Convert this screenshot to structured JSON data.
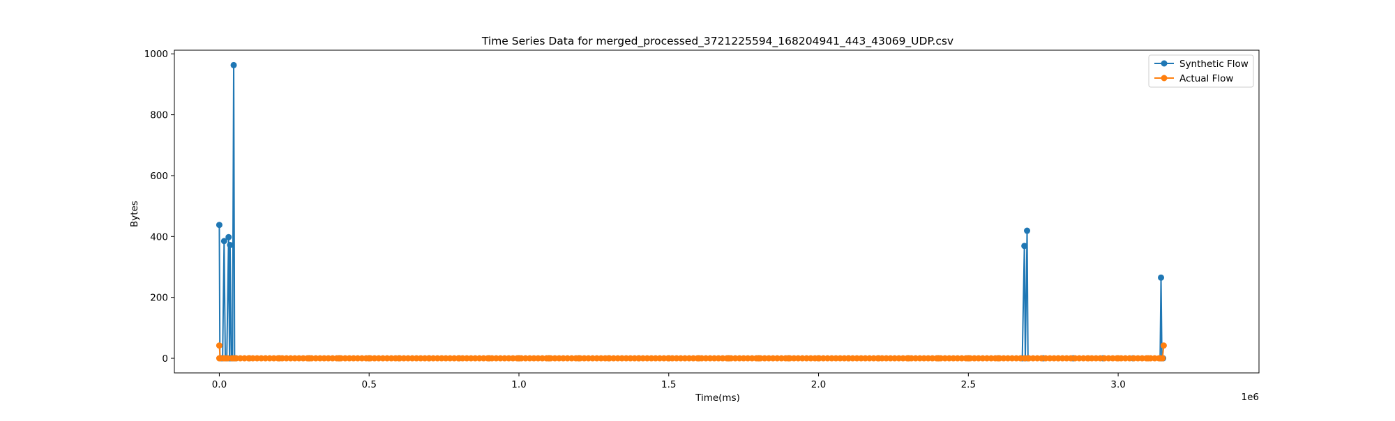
{
  "chart_data": {
    "type": "line",
    "title": "Time Series Data for merged_processed_3721225594_168204941_443_43069_UDP.csv",
    "xlabel": "Time(ms)",
    "ylabel": "Bytes",
    "x_offset_label": "1e6",
    "x_scale": 1000000,
    "xlim": [
      -150000,
      3470000
    ],
    "ylim": [
      -48,
      1012
    ],
    "x_ticks": [
      0,
      500000,
      1000000,
      1500000,
      2000000,
      2500000,
      3000000
    ],
    "x_tick_labels": [
      "0.0",
      "0.5",
      "1.0",
      "1.5",
      "2.0",
      "2.5",
      "3.0"
    ],
    "y_ticks": [
      0,
      200,
      400,
      600,
      800,
      1000
    ],
    "y_tick_labels": [
      "0",
      "200",
      "400",
      "600",
      "800",
      "1000"
    ],
    "grid": false,
    "legend_position": "top-right",
    "series": [
      {
        "name": "Synthetic Flow",
        "color": "#1f77b4",
        "marker": "circle",
        "points": [
          [
            0,
            438
          ],
          [
            2000,
            0
          ],
          [
            6000,
            0
          ],
          [
            11000,
            0
          ],
          [
            16000,
            385
          ],
          [
            20000,
            0
          ],
          [
            25000,
            0
          ],
          [
            31000,
            398
          ],
          [
            34000,
            0
          ],
          [
            36000,
            372
          ],
          [
            40000,
            0
          ],
          [
            44000,
            0
          ],
          [
            48000,
            963
          ],
          [
            51000,
            0
          ],
          [
            56000,
            0
          ],
          [
            100000,
            0
          ],
          [
            200000,
            0
          ],
          [
            300000,
            0
          ],
          [
            400000,
            0
          ],
          [
            500000,
            0
          ],
          [
            600000,
            0
          ],
          [
            700000,
            0
          ],
          [
            800000,
            0
          ],
          [
            900000,
            0
          ],
          [
            1000000,
            0
          ],
          [
            1100000,
            0
          ],
          [
            1200000,
            0
          ],
          [
            1300000,
            0
          ],
          [
            1400000,
            0
          ],
          [
            1500000,
            0
          ],
          [
            1600000,
            0
          ],
          [
            1700000,
            0
          ],
          [
            1800000,
            0
          ],
          [
            1900000,
            0
          ],
          [
            2000000,
            0
          ],
          [
            2100000,
            0
          ],
          [
            2200000,
            0
          ],
          [
            2300000,
            0
          ],
          [
            2400000,
            0
          ],
          [
            2500000,
            0
          ],
          [
            2600000,
            0
          ],
          [
            2680000,
            0
          ],
          [
            2687000,
            369
          ],
          [
            2690000,
            0
          ],
          [
            2696000,
            419
          ],
          [
            2699000,
            0
          ],
          [
            2750000,
            0
          ],
          [
            2850000,
            0
          ],
          [
            2950000,
            0
          ],
          [
            3050000,
            0
          ],
          [
            3140000,
            0
          ],
          [
            3143000,
            265
          ],
          [
            3146000,
            0
          ],
          [
            3150000,
            0
          ]
        ]
      },
      {
        "name": "Actual Flow",
        "color": "#ff7f0e",
        "marker": "circle",
        "points": [
          [
            0,
            42
          ],
          [
            3000,
            0
          ],
          [
            20000,
            0
          ],
          [
            50000,
            0
          ],
          [
            100000,
            0
          ],
          [
            200000,
            0
          ],
          [
            300000,
            0
          ],
          [
            400000,
            0
          ],
          [
            500000,
            0
          ],
          [
            600000,
            0
          ],
          [
            700000,
            0
          ],
          [
            800000,
            0
          ],
          [
            900000,
            0
          ],
          [
            1000000,
            0
          ],
          [
            1100000,
            0
          ],
          [
            1200000,
            0
          ],
          [
            1300000,
            0
          ],
          [
            1400000,
            0
          ],
          [
            1500000,
            0
          ],
          [
            1600000,
            0
          ],
          [
            1700000,
            0
          ],
          [
            1800000,
            0
          ],
          [
            1900000,
            0
          ],
          [
            2000000,
            0
          ],
          [
            2100000,
            0
          ],
          [
            2200000,
            0
          ],
          [
            2300000,
            0
          ],
          [
            2400000,
            0
          ],
          [
            2500000,
            0
          ],
          [
            2600000,
            0
          ],
          [
            2700000,
            0
          ],
          [
            2800000,
            0
          ],
          [
            2900000,
            0
          ],
          [
            3000000,
            0
          ],
          [
            3100000,
            0
          ],
          [
            3140000,
            0
          ],
          [
            3148000,
            0
          ],
          [
            3152000,
            42
          ]
        ]
      }
    ]
  }
}
